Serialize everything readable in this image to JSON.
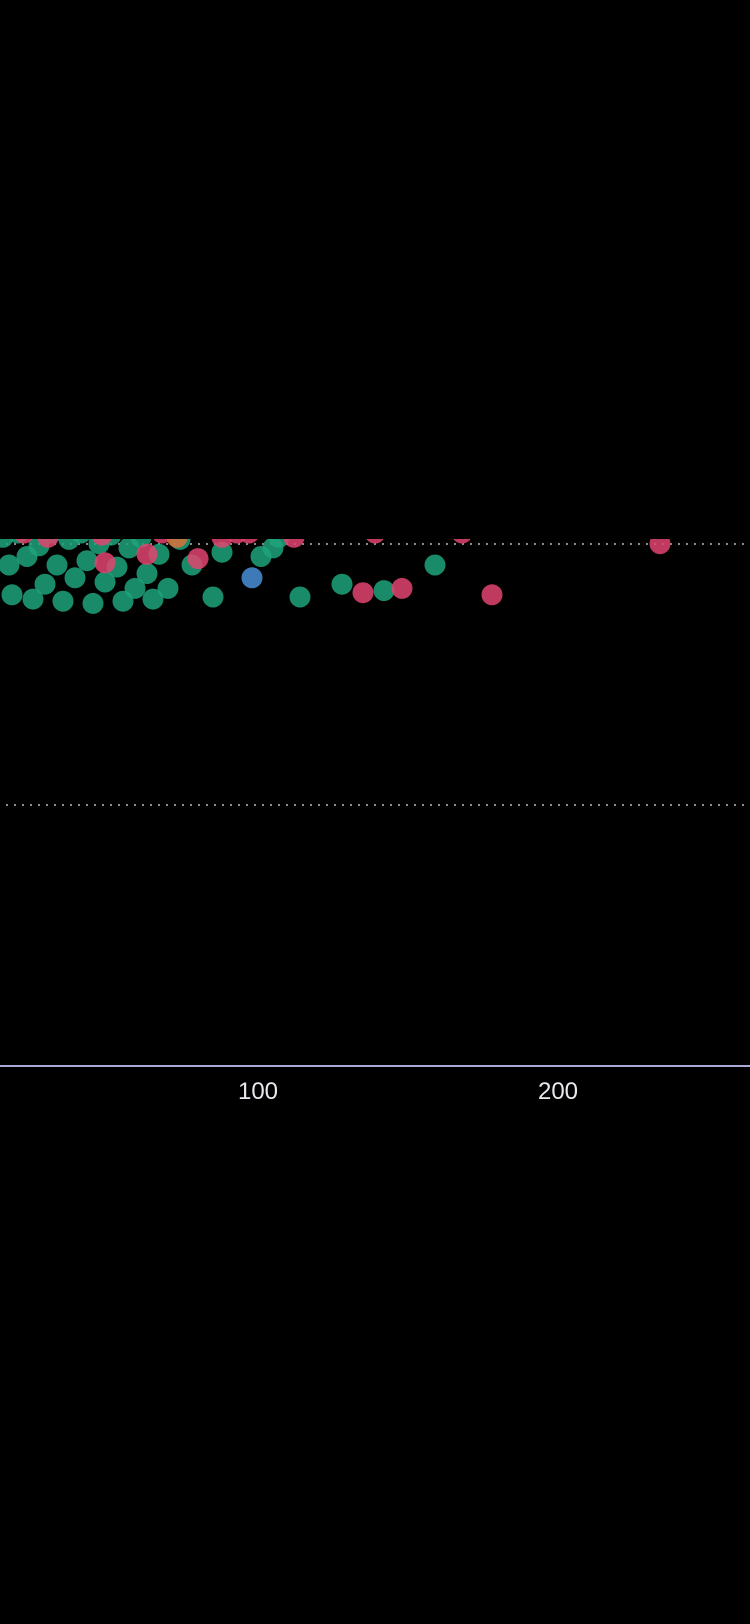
{
  "colors": {
    "background": "#000000",
    "axis": "#a9a9d6",
    "gridline": "#b8b8b8",
    "tick_text": "#e8e8ee",
    "green": "#1fa37a",
    "pink": "#e0446f",
    "blue": "#4a8fd8",
    "orange": "#d9703a"
  },
  "chart_data": {
    "type": "scatter",
    "title": "",
    "xlabel": "",
    "ylabel": "",
    "x_ticks": [
      100,
      200
    ],
    "xlim": [
      14,
      264
    ],
    "ylim": [
      0,
      1
    ],
    "grid": true,
    "series": [
      {
        "color_key": "green",
        "points": [
          {
            "x": 15,
            "y": 0.496
          },
          {
            "x": 17,
            "y": 0.47
          },
          {
            "x": 18,
            "y": 0.442
          },
          {
            "x": 20,
            "y": 0.5
          },
          {
            "x": 23,
            "y": 0.478
          },
          {
            "x": 25,
            "y": 0.438
          },
          {
            "x": 27,
            "y": 0.488
          },
          {
            "x": 29,
            "y": 0.452
          },
          {
            "x": 31,
            "y": 0.5
          },
          {
            "x": 33,
            "y": 0.47
          },
          {
            "x": 35,
            "y": 0.436
          },
          {
            "x": 37,
            "y": 0.494
          },
          {
            "x": 39,
            "y": 0.458
          },
          {
            "x": 41,
            "y": 0.5
          },
          {
            "x": 43,
            "y": 0.474
          },
          {
            "x": 45,
            "y": 0.434
          },
          {
            "x": 47,
            "y": 0.49
          },
          {
            "x": 49,
            "y": 0.454
          },
          {
            "x": 51,
            "y": 0.498
          },
          {
            "x": 53,
            "y": 0.468
          },
          {
            "x": 55,
            "y": 0.436
          },
          {
            "x": 57,
            "y": 0.486
          },
          {
            "x": 59,
            "y": 0.448
          },
          {
            "x": 61,
            "y": 0.496
          },
          {
            "x": 63,
            "y": 0.462
          },
          {
            "x": 65,
            "y": 0.438
          },
          {
            "x": 67,
            "y": 0.48
          },
          {
            "x": 70,
            "y": 0.448
          },
          {
            "x": 74,
            "y": 0.494
          },
          {
            "x": 78,
            "y": 0.47
          },
          {
            "x": 85,
            "y": 0.44
          },
          {
            "x": 88,
            "y": 0.482
          },
          {
            "x": 101,
            "y": 0.478
          },
          {
            "x": 105,
            "y": 0.486
          },
          {
            "x": 107,
            "y": 0.496
          },
          {
            "x": 114,
            "y": 0.44
          },
          {
            "x": 128,
            "y": 0.452
          },
          {
            "x": 142,
            "y": 0.446
          },
          {
            "x": 159,
            "y": 0.47
          }
        ]
      },
      {
        "color_key": "pink",
        "points": [
          {
            "x": 22,
            "y": 0.5
          },
          {
            "x": 30,
            "y": 0.496
          },
          {
            "x": 48,
            "y": 0.498
          },
          {
            "x": 49,
            "y": 0.472
          },
          {
            "x": 63,
            "y": 0.48
          },
          {
            "x": 68,
            "y": 0.5
          },
          {
            "x": 80,
            "y": 0.476
          },
          {
            "x": 88,
            "y": 0.496
          },
          {
            "x": 93,
            "y": 0.5
          },
          {
            "x": 97,
            "y": 0.5
          },
          {
            "x": 112,
            "y": 0.496
          },
          {
            "x": 139,
            "y": 0.5
          },
          {
            "x": 135,
            "y": 0.444
          },
          {
            "x": 148,
            "y": 0.448
          },
          {
            "x": 168,
            "y": 0.5
          },
          {
            "x": 178,
            "y": 0.442
          },
          {
            "x": 234,
            "y": 0.49
          }
        ]
      },
      {
        "color_key": "blue",
        "points": [
          {
            "x": 98,
            "y": 0.458
          }
        ]
      },
      {
        "color_key": "orange",
        "points": [
          {
            "x": 73,
            "y": 0.496
          }
        ]
      }
    ]
  }
}
